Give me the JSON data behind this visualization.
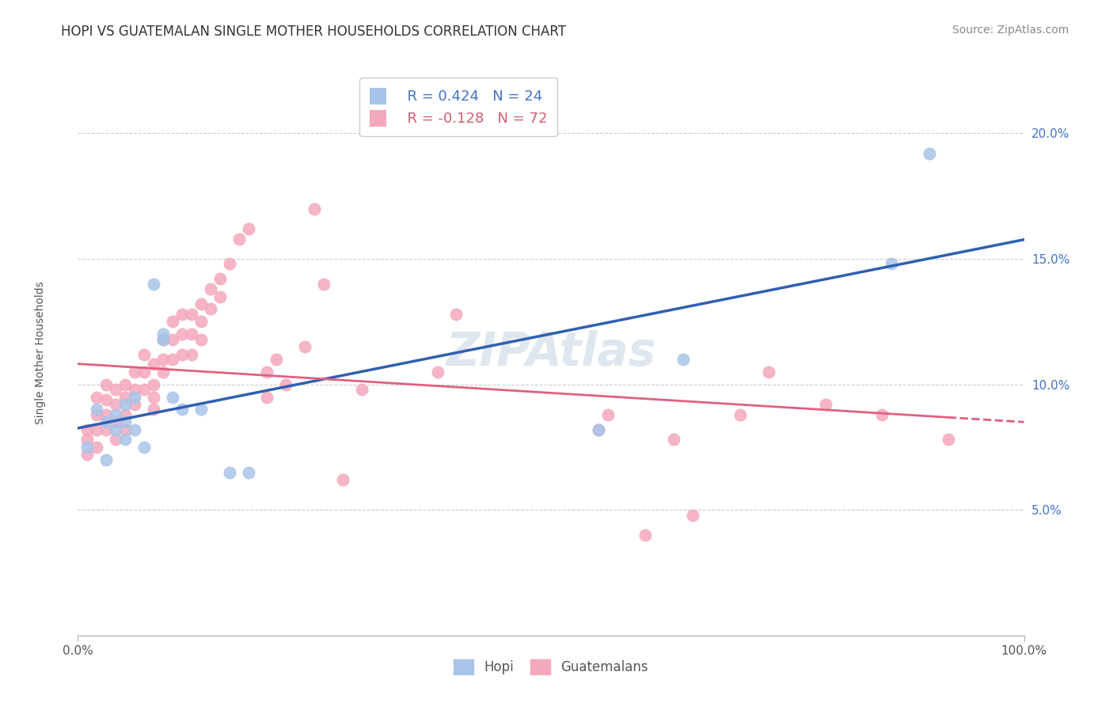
{
  "title": "HOPI VS GUATEMALAN SINGLE MOTHER HOUSEHOLDS CORRELATION CHART",
  "source": "Source: ZipAtlas.com",
  "ylabel": "Single Mother Households",
  "watermark": "ZIPAtlas",
  "legend_hopi_r": "R = 0.424",
  "legend_hopi_n": "N = 24",
  "legend_guat_r": "R = -0.128",
  "legend_guat_n": "N = 72",
  "hopi_color": "#a8c4e8",
  "guat_color": "#f4a8bc",
  "hopi_line_color": "#3060b0",
  "guat_line_color": "#e06080",
  "ytick_labels": [
    "5.0%",
    "10.0%",
    "15.0%",
    "20.0%"
  ],
  "ytick_values": [
    0.05,
    0.1,
    0.15,
    0.2
  ],
  "xlim": [
    0.0,
    1.0
  ],
  "ylim": [
    0.0,
    0.225
  ],
  "hopi_scatter_x": [
    0.01,
    0.02,
    0.03,
    0.03,
    0.04,
    0.04,
    0.05,
    0.05,
    0.05,
    0.06,
    0.06,
    0.07,
    0.08,
    0.09,
    0.09,
    0.1,
    0.11,
    0.13,
    0.16,
    0.18,
    0.55,
    0.64,
    0.86,
    0.9
  ],
  "hopi_scatter_y": [
    0.075,
    0.09,
    0.085,
    0.07,
    0.082,
    0.088,
    0.092,
    0.078,
    0.085,
    0.082,
    0.095,
    0.075,
    0.14,
    0.12,
    0.118,
    0.095,
    0.09,
    0.09,
    0.065,
    0.065,
    0.082,
    0.11,
    0.148,
    0.192
  ],
  "guat_scatter_x": [
    0.01,
    0.01,
    0.01,
    0.02,
    0.02,
    0.02,
    0.02,
    0.03,
    0.03,
    0.03,
    0.03,
    0.04,
    0.04,
    0.04,
    0.04,
    0.05,
    0.05,
    0.05,
    0.05,
    0.06,
    0.06,
    0.06,
    0.07,
    0.07,
    0.07,
    0.08,
    0.08,
    0.08,
    0.08,
    0.09,
    0.09,
    0.09,
    0.1,
    0.1,
    0.1,
    0.11,
    0.11,
    0.11,
    0.12,
    0.12,
    0.12,
    0.13,
    0.13,
    0.13,
    0.14,
    0.14,
    0.15,
    0.15,
    0.16,
    0.17,
    0.18,
    0.2,
    0.2,
    0.21,
    0.22,
    0.24,
    0.25,
    0.26,
    0.28,
    0.3,
    0.38,
    0.4,
    0.55,
    0.56,
    0.6,
    0.63,
    0.65,
    0.7,
    0.73,
    0.79,
    0.85,
    0.92
  ],
  "guat_scatter_y": [
    0.082,
    0.078,
    0.072,
    0.095,
    0.088,
    0.082,
    0.075,
    0.1,
    0.094,
    0.088,
    0.082,
    0.098,
    0.092,
    0.085,
    0.078,
    0.1,
    0.095,
    0.088,
    0.082,
    0.105,
    0.098,
    0.092,
    0.112,
    0.105,
    0.098,
    0.108,
    0.1,
    0.095,
    0.09,
    0.118,
    0.11,
    0.105,
    0.125,
    0.118,
    0.11,
    0.128,
    0.12,
    0.112,
    0.128,
    0.12,
    0.112,
    0.132,
    0.125,
    0.118,
    0.138,
    0.13,
    0.142,
    0.135,
    0.148,
    0.158,
    0.162,
    0.095,
    0.105,
    0.11,
    0.1,
    0.115,
    0.17,
    0.14,
    0.062,
    0.098,
    0.105,
    0.128,
    0.082,
    0.088,
    0.04,
    0.078,
    0.048,
    0.088,
    0.105,
    0.092,
    0.088,
    0.078
  ],
  "background_color": "#ffffff",
  "grid_color": "#cccccc",
  "title_fontsize": 12,
  "axis_label_fontsize": 10,
  "tick_fontsize": 11,
  "legend_fontsize": 13,
  "source_fontsize": 10
}
